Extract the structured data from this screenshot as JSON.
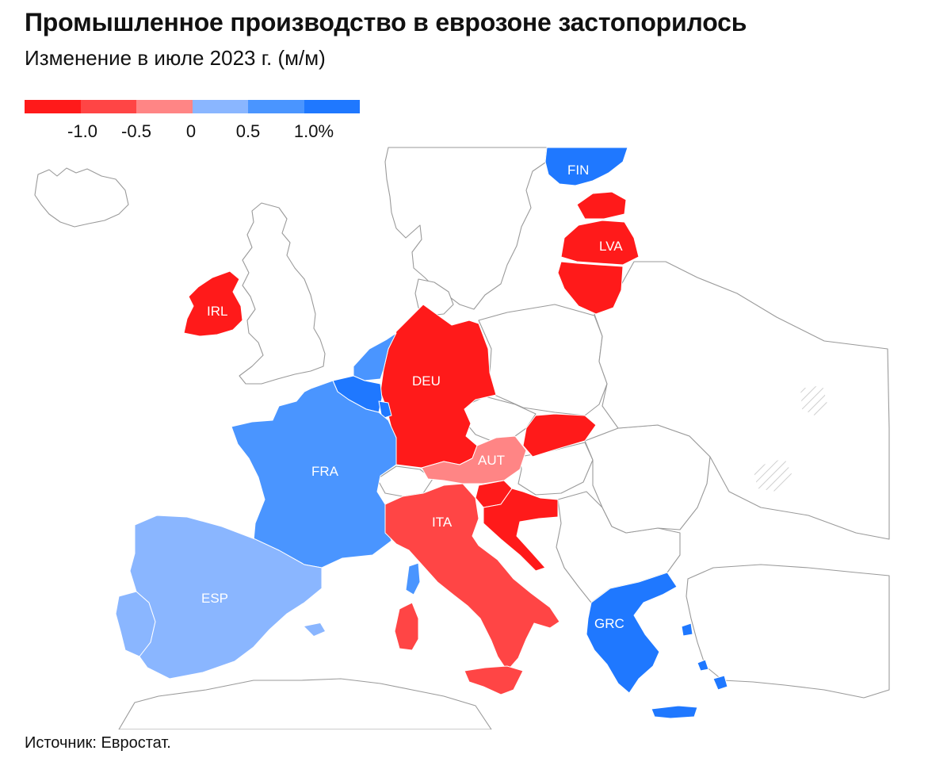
{
  "title": "Промышленное производство в еврозоне застопорилось",
  "subtitle": "Изменение в июле 2023 г. (м/м)",
  "legend": {
    "colors": [
      "#ff1a1a",
      "#ff4545",
      "#ff8585",
      "#8ab6ff",
      "#4a95ff",
      "#1f78ff"
    ],
    "ticks": [
      "-1.0",
      "-0.5",
      "0",
      "0.5",
      "1.0%"
    ]
  },
  "map": {
    "countries": [
      {
        "code": "FIN",
        "label": "FIN",
        "color": "#1f78ff"
      },
      {
        "code": "LVA",
        "label": "LVA",
        "color": "#ff1a1a"
      },
      {
        "code": "EST",
        "label": "",
        "color": "#ff1a1a"
      },
      {
        "code": "LTU",
        "label": "",
        "color": "#ff1a1a"
      },
      {
        "code": "IRL",
        "label": "IRL",
        "color": "#ff1a1a"
      },
      {
        "code": "DEU",
        "label": "DEU",
        "color": "#ff1a1a"
      },
      {
        "code": "NLD",
        "label": "",
        "color": "#4a95ff"
      },
      {
        "code": "BEL",
        "label": "",
        "color": "#1f78ff"
      },
      {
        "code": "LUX",
        "label": "",
        "color": "#1f78ff"
      },
      {
        "code": "FRA",
        "label": "FRA",
        "color": "#4a95ff"
      },
      {
        "code": "ESP",
        "label": "ESP",
        "color": "#8ab6ff"
      },
      {
        "code": "PRT",
        "label": "",
        "color": "#8ab6ff"
      },
      {
        "code": "AUT",
        "label": "AUT",
        "color": "#ff8585"
      },
      {
        "code": "SVK",
        "label": "",
        "color": "#ff1a1a"
      },
      {
        "code": "SVN",
        "label": "",
        "color": "#ff1a1a"
      },
      {
        "code": "HRV",
        "label": "",
        "color": "#ff1a1a"
      },
      {
        "code": "ITA",
        "label": "ITA",
        "color": "#ff4545"
      },
      {
        "code": "GRC",
        "label": "GRC",
        "color": "#1f78ff"
      }
    ]
  },
  "source": "Источник: Евростат."
}
